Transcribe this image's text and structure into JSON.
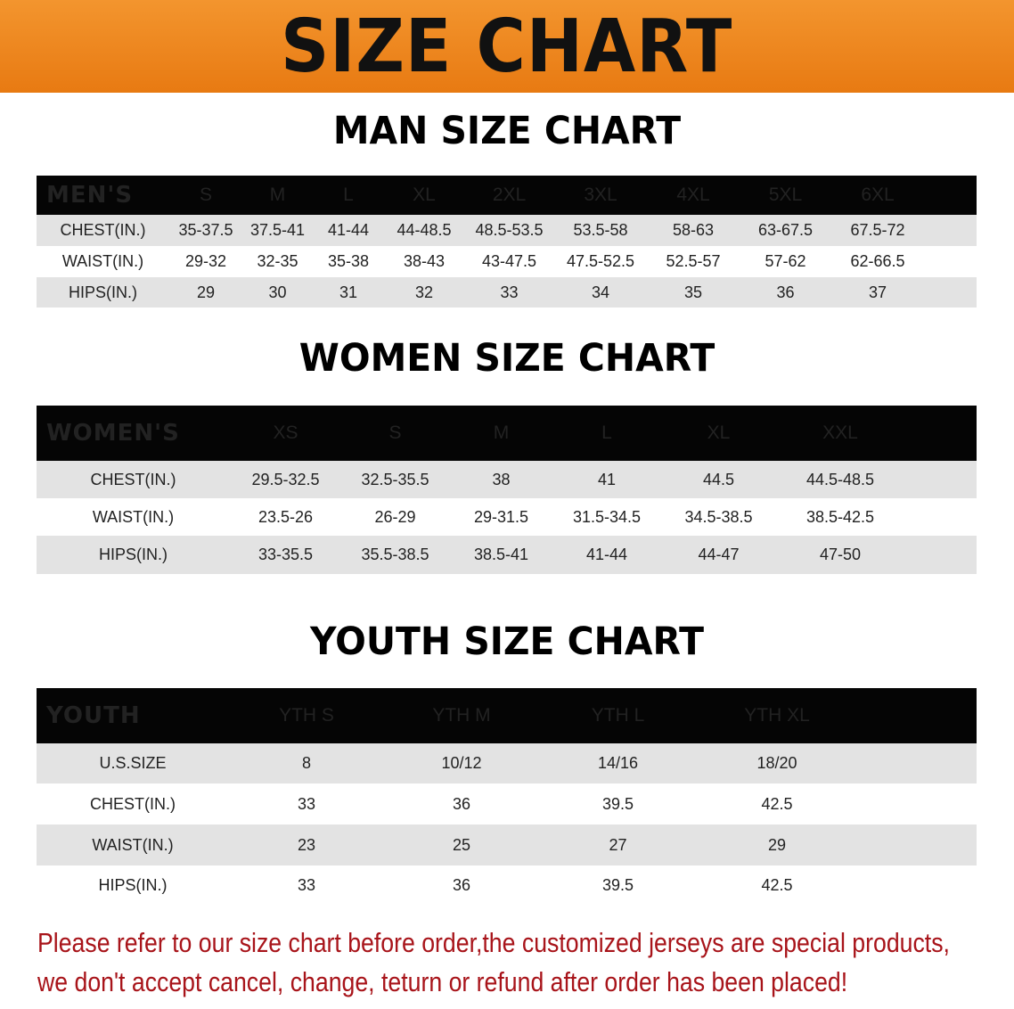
{
  "banner_title": "SIZE CHART",
  "men": {
    "title": "MAN SIZE CHART",
    "header": [
      "MEN'S",
      "S",
      "M",
      "L",
      "XL",
      "2XL",
      "3XL",
      "4XL",
      "5XL",
      "6XL"
    ],
    "rows": [
      [
        "CHEST(IN.)",
        "35-37.5",
        "37.5-41",
        "41-44",
        "44-48.5",
        "48.5-53.5",
        "53.5-58",
        "58-63",
        "63-67.5",
        "67.5-72"
      ],
      [
        "WAIST(IN.)",
        "29-32",
        "32-35",
        "35-38",
        "38-43",
        "43-47.5",
        "47.5-52.5",
        "52.5-57",
        "57-62",
        "62-66.5"
      ],
      [
        "HIPS(IN.)",
        "29",
        "30",
        "31",
        "32",
        "33",
        "34",
        "35",
        "36",
        "37"
      ]
    ]
  },
  "women": {
    "title": "WOMEN SIZE CHART",
    "header": [
      "WOMEN'S",
      "XS",
      "S",
      "M",
      "L",
      "XL",
      "XXL"
    ],
    "rows": [
      [
        "CHEST(IN.)",
        "29.5-32.5",
        "32.5-35.5",
        "38",
        "41",
        "44.5",
        "44.5-48.5"
      ],
      [
        "WAIST(IN.)",
        "23.5-26",
        "26-29",
        "29-31.5",
        "31.5-34.5",
        "34.5-38.5",
        "38.5-42.5"
      ],
      [
        "HIPS(IN.)",
        "33-35.5",
        "35.5-38.5",
        "38.5-41",
        "41-44",
        "44-47",
        "47-50"
      ]
    ]
  },
  "youth": {
    "title": "YOUTH SIZE CHART",
    "header": [
      "YOUTH",
      "YTH S",
      "YTH M",
      "YTH L",
      "YTH XL"
    ],
    "rows": [
      [
        "U.S.SIZE",
        "8",
        "10/12",
        "14/16",
        "18/20"
      ],
      [
        "CHEST(IN.)",
        "33",
        "36",
        "39.5",
        "42.5"
      ],
      [
        "WAIST(IN.)",
        "23",
        "25",
        "27",
        "29"
      ],
      [
        "HIPS(IN.)",
        "33",
        "36",
        "39.5",
        "42.5"
      ]
    ]
  },
  "notice": [
    "Please refer to our size chart before order,the customized jerseys are special products,",
    "we don't accept cancel, change, teturn or refund after order has been placed!"
  ],
  "colors": {
    "banner": "#ee8520",
    "header_bg": "#050505",
    "row_grey": "#e3e3e3",
    "notice": "#a8141a"
  }
}
